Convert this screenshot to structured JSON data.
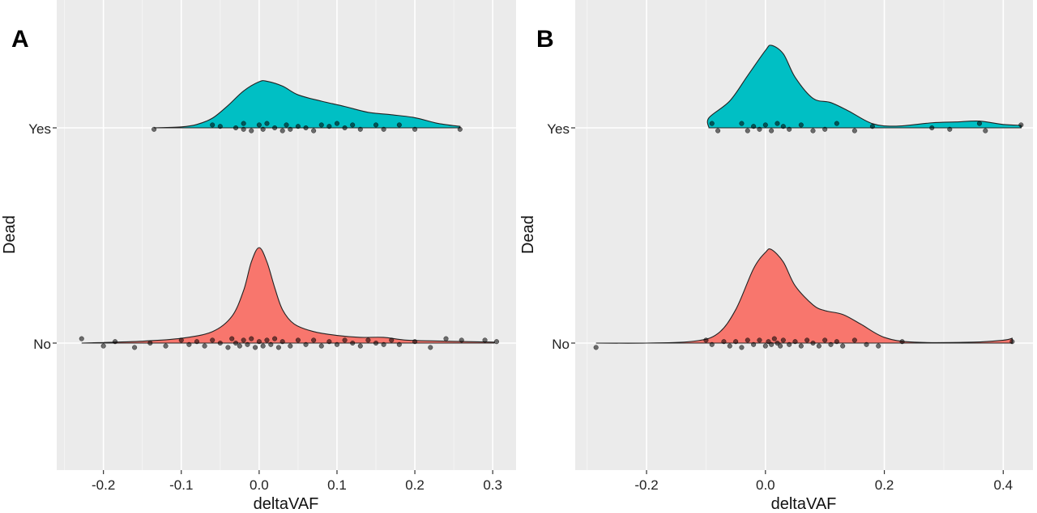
{
  "chart_data": [
    {
      "panel": "A",
      "type": "ridgeline-density-jitter",
      "xlabel": "deltaVAF",
      "ylabel": "Dead",
      "categories": [
        "No",
        "Yes"
      ],
      "xticks": [
        -0.2,
        -0.1,
        0.0,
        0.1,
        0.2,
        0.3
      ],
      "xtick_labels": [
        "-0.2",
        "-0.1",
        "0.0",
        "0.1",
        "0.2",
        "0.3"
      ],
      "xlim": [
        -0.26,
        0.33
      ],
      "series": [
        {
          "name": "Yes",
          "color": "#00BFC4",
          "density": [
            [
              -0.135,
              0.0
            ],
            [
              -0.1,
              0.02
            ],
            [
              -0.08,
              0.07
            ],
            [
              -0.06,
              0.2
            ],
            [
              -0.04,
              0.46
            ],
            [
              -0.02,
              0.76
            ],
            [
              0.0,
              0.95
            ],
            [
              0.01,
              0.96
            ],
            [
              0.03,
              0.86
            ],
            [
              0.05,
              0.68
            ],
            [
              0.08,
              0.55
            ],
            [
              0.11,
              0.44
            ],
            [
              0.14,
              0.32
            ],
            [
              0.17,
              0.27
            ],
            [
              0.2,
              0.21
            ],
            [
              0.23,
              0.09
            ],
            [
              0.258,
              0.03
            ]
          ],
          "points": [
            [
              -0.135,
              -0.01
            ],
            [
              -0.06,
              0.02
            ],
            [
              -0.05,
              0.01
            ],
            [
              -0.03,
              0.0
            ],
            [
              -0.02,
              0.03
            ],
            [
              -0.01,
              -0.02
            ],
            [
              0.0,
              0.02
            ],
            [
              0.005,
              -0.01
            ],
            [
              0.01,
              0.03
            ],
            [
              0.02,
              0.0
            ],
            [
              0.03,
              -0.02
            ],
            [
              0.035,
              0.02
            ],
            [
              0.05,
              0.01
            ],
            [
              0.07,
              -0.02
            ],
            [
              0.08,
              0.02
            ],
            [
              0.09,
              0.01
            ],
            [
              0.1,
              0.03
            ],
            [
              0.11,
              0.0
            ],
            [
              0.13,
              -0.01
            ],
            [
              0.15,
              0.02
            ],
            [
              0.16,
              -0.01
            ],
            [
              0.18,
              0.02
            ],
            [
              0.2,
              -0.01
            ],
            [
              0.258,
              -0.01
            ],
            [
              -0.02,
              -0.01
            ],
            [
              0.06,
              0.0
            ],
            [
              0.04,
              -0.01
            ],
            [
              0.12,
              0.02
            ]
          ]
        },
        {
          "name": "No",
          "color": "#F8766D",
          "density": [
            [
              -0.228,
              0.0
            ],
            [
              -0.15,
              0.02
            ],
            [
              -0.1,
              0.05
            ],
            [
              -0.06,
              0.12
            ],
            [
              -0.035,
              0.28
            ],
            [
              -0.02,
              0.55
            ],
            [
              -0.01,
              0.85
            ],
            [
              0.0,
              1.0
            ],
            [
              0.01,
              0.85
            ],
            [
              0.02,
              0.58
            ],
            [
              0.03,
              0.35
            ],
            [
              0.045,
              0.2
            ],
            [
              0.07,
              0.12
            ],
            [
              0.1,
              0.08
            ],
            [
              0.13,
              0.06
            ],
            [
              0.16,
              0.06
            ],
            [
              0.19,
              0.03
            ],
            [
              0.24,
              0.02
            ],
            [
              0.302,
              0.01
            ]
          ],
          "points": [
            [
              -0.228,
              0.03
            ],
            [
              -0.2,
              -0.02
            ],
            [
              -0.185,
              0.01
            ],
            [
              -0.16,
              -0.03
            ],
            [
              -0.14,
              0.0
            ],
            [
              -0.12,
              -0.02
            ],
            [
              -0.1,
              0.02
            ],
            [
              -0.09,
              -0.01
            ],
            [
              -0.08,
              0.01
            ],
            [
              -0.07,
              -0.02
            ],
            [
              -0.06,
              0.02
            ],
            [
              -0.05,
              0.0
            ],
            [
              -0.04,
              -0.03
            ],
            [
              -0.035,
              0.03
            ],
            [
              -0.03,
              0.0
            ],
            [
              -0.025,
              -0.02
            ],
            [
              -0.02,
              0.02
            ],
            [
              -0.015,
              -0.01
            ],
            [
              -0.01,
              0.03
            ],
            [
              -0.005,
              -0.03
            ],
            [
              0.0,
              0.01
            ],
            [
              0.005,
              -0.02
            ],
            [
              0.01,
              0.02
            ],
            [
              0.015,
              -0.01
            ],
            [
              0.02,
              0.03
            ],
            [
              0.025,
              -0.03
            ],
            [
              0.03,
              0.01
            ],
            [
              0.04,
              -0.02
            ],
            [
              0.05,
              0.02
            ],
            [
              0.06,
              -0.01
            ],
            [
              0.07,
              0.02
            ],
            [
              0.08,
              -0.02
            ],
            [
              0.09,
              0.01
            ],
            [
              0.1,
              -0.01
            ],
            [
              0.11,
              0.02
            ],
            [
              0.12,
              0.0
            ],
            [
              0.13,
              -0.02
            ],
            [
              0.14,
              0.02
            ],
            [
              0.15,
              0.0
            ],
            [
              0.16,
              -0.01
            ],
            [
              0.17,
              0.02
            ],
            [
              0.18,
              -0.01
            ],
            [
              0.2,
              0.01
            ],
            [
              0.22,
              -0.03
            ],
            [
              0.24,
              0.03
            ],
            [
              0.26,
              0.02
            ],
            [
              0.29,
              0.02
            ],
            [
              0.305,
              0.01
            ]
          ]
        }
      ]
    },
    {
      "panel": "B",
      "type": "ridgeline-density-jitter",
      "xlabel": "deltaVAF",
      "ylabel": "Dead",
      "categories": [
        "No",
        "Yes"
      ],
      "xticks": [
        -0.2,
        0.0,
        0.2,
        0.4
      ],
      "xtick_labels": [
        "-0.2",
        "0.0",
        "0.2",
        "0.4"
      ],
      "xlim": [
        -0.32,
        0.45
      ],
      "series": [
        {
          "name": "Yes",
          "color": "#00BFC4",
          "density": [
            [
              -0.095,
              0.0
            ],
            [
              -0.095,
              0.12
            ],
            [
              -0.06,
              0.32
            ],
            [
              -0.03,
              0.62
            ],
            [
              0.0,
              0.92
            ],
            [
              0.01,
              0.98
            ],
            [
              0.03,
              0.88
            ],
            [
              0.05,
              0.6
            ],
            [
              0.08,
              0.35
            ],
            [
              0.11,
              0.3
            ],
            [
              0.14,
              0.2
            ],
            [
              0.18,
              0.05
            ],
            [
              0.22,
              0.02
            ],
            [
              0.28,
              0.06
            ],
            [
              0.32,
              0.07
            ],
            [
              0.36,
              0.08
            ],
            [
              0.4,
              0.04
            ],
            [
              0.43,
              0.03
            ]
          ],
          "points": [
            [
              -0.09,
              0.03
            ],
            [
              -0.08,
              -0.02
            ],
            [
              -0.04,
              0.03
            ],
            [
              -0.02,
              0.01
            ],
            [
              -0.01,
              -0.01
            ],
            [
              0.0,
              0.02
            ],
            [
              0.01,
              -0.02
            ],
            [
              0.02,
              0.03
            ],
            [
              0.03,
              0.01
            ],
            [
              0.04,
              -0.01
            ],
            [
              -0.03,
              -0.02
            ],
            [
              0.06,
              0.02
            ],
            [
              0.08,
              -0.02
            ],
            [
              0.1,
              -0.01
            ],
            [
              0.12,
              0.03
            ],
            [
              0.15,
              -0.02
            ],
            [
              0.18,
              0.01
            ],
            [
              0.28,
              0.0
            ],
            [
              0.31,
              -0.01
            ],
            [
              0.36,
              0.03
            ],
            [
              0.37,
              -0.02
            ],
            [
              0.43,
              0.02
            ]
          ]
        },
        {
          "name": "No",
          "color": "#F8766D",
          "density": [
            [
              -0.285,
              0.0
            ],
            [
              -0.2,
              0.0
            ],
            [
              -0.12,
              0.02
            ],
            [
              -0.08,
              0.1
            ],
            [
              -0.05,
              0.35
            ],
            [
              -0.02,
              0.78
            ],
            [
              0.0,
              0.95
            ],
            [
              0.01,
              0.98
            ],
            [
              0.03,
              0.85
            ],
            [
              0.05,
              0.6
            ],
            [
              0.08,
              0.4
            ],
            [
              0.1,
              0.34
            ],
            [
              0.13,
              0.3
            ],
            [
              0.16,
              0.2
            ],
            [
              0.2,
              0.06
            ],
            [
              0.25,
              0.01
            ],
            [
              0.35,
              0.01
            ],
            [
              0.4,
              0.03
            ],
            [
              0.415,
              0.05
            ]
          ],
          "points": [
            [
              -0.285,
              -0.03
            ],
            [
              -0.1,
              0.02
            ],
            [
              -0.09,
              -0.01
            ],
            [
              -0.07,
              0.01
            ],
            [
              -0.06,
              -0.02
            ],
            [
              -0.05,
              0.01
            ],
            [
              -0.04,
              -0.03
            ],
            [
              -0.03,
              0.02
            ],
            [
              -0.02,
              -0.01
            ],
            [
              -0.01,
              0.02
            ],
            [
              0.0,
              -0.02
            ],
            [
              0.005,
              0.01
            ],
            [
              0.01,
              -0.01
            ],
            [
              0.015,
              0.03
            ],
            [
              0.02,
              0.0
            ],
            [
              0.025,
              -0.02
            ],
            [
              0.03,
              0.02
            ],
            [
              0.04,
              -0.01
            ],
            [
              0.05,
              0.01
            ],
            [
              0.06,
              -0.02
            ],
            [
              0.07,
              0.02
            ],
            [
              0.08,
              0.0
            ],
            [
              0.09,
              -0.02
            ],
            [
              0.1,
              0.02
            ],
            [
              0.11,
              -0.01
            ],
            [
              0.12,
              0.01
            ],
            [
              0.13,
              -0.02
            ],
            [
              0.15,
              0.02
            ],
            [
              0.17,
              -0.01
            ],
            [
              0.19,
              -0.02
            ],
            [
              0.23,
              0.01
            ],
            [
              0.415,
              0.01
            ]
          ]
        }
      ]
    }
  ]
}
